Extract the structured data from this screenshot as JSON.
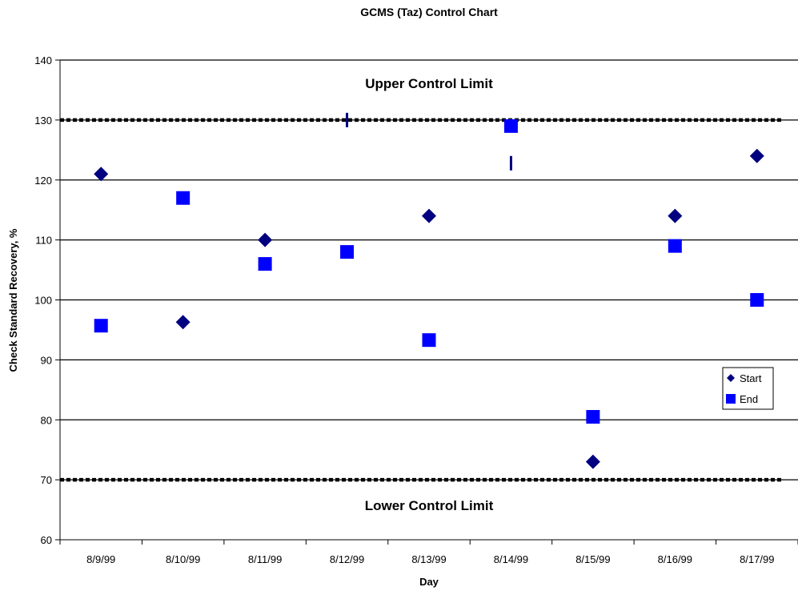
{
  "chart_data": {
    "type": "scatter",
    "title": "GCMS (Taz) Control Chart",
    "xlabel": "Day",
    "ylabel": "Check Standard Recovery, %",
    "categories": [
      "8/9/99",
      "8/10/99",
      "8/11/99",
      "8/12/99",
      "8/13/99",
      "8/14/99",
      "8/15/99",
      "8/16/99",
      "8/17/99"
    ],
    "ylim": [
      60,
      140
    ],
    "yticks": [
      60,
      70,
      80,
      90,
      100,
      110,
      120,
      130,
      140
    ],
    "grid": true,
    "legend": "right",
    "series": [
      {
        "name": "Start",
        "marker": "diamond",
        "color": "#000080",
        "values": [
          121,
          96.3,
          110,
          130,
          114,
          122.8,
          73,
          114,
          124
        ]
      },
      {
        "name": "End",
        "marker": "square",
        "color": "#0000ff",
        "values": [
          95.7,
          117,
          106,
          108,
          93.3,
          129,
          80.5,
          109,
          100
        ]
      }
    ],
    "limits": [
      {
        "label": "Upper Control Limit",
        "value": 130
      },
      {
        "label": "Lower Control Limit",
        "value": 70
      }
    ]
  }
}
